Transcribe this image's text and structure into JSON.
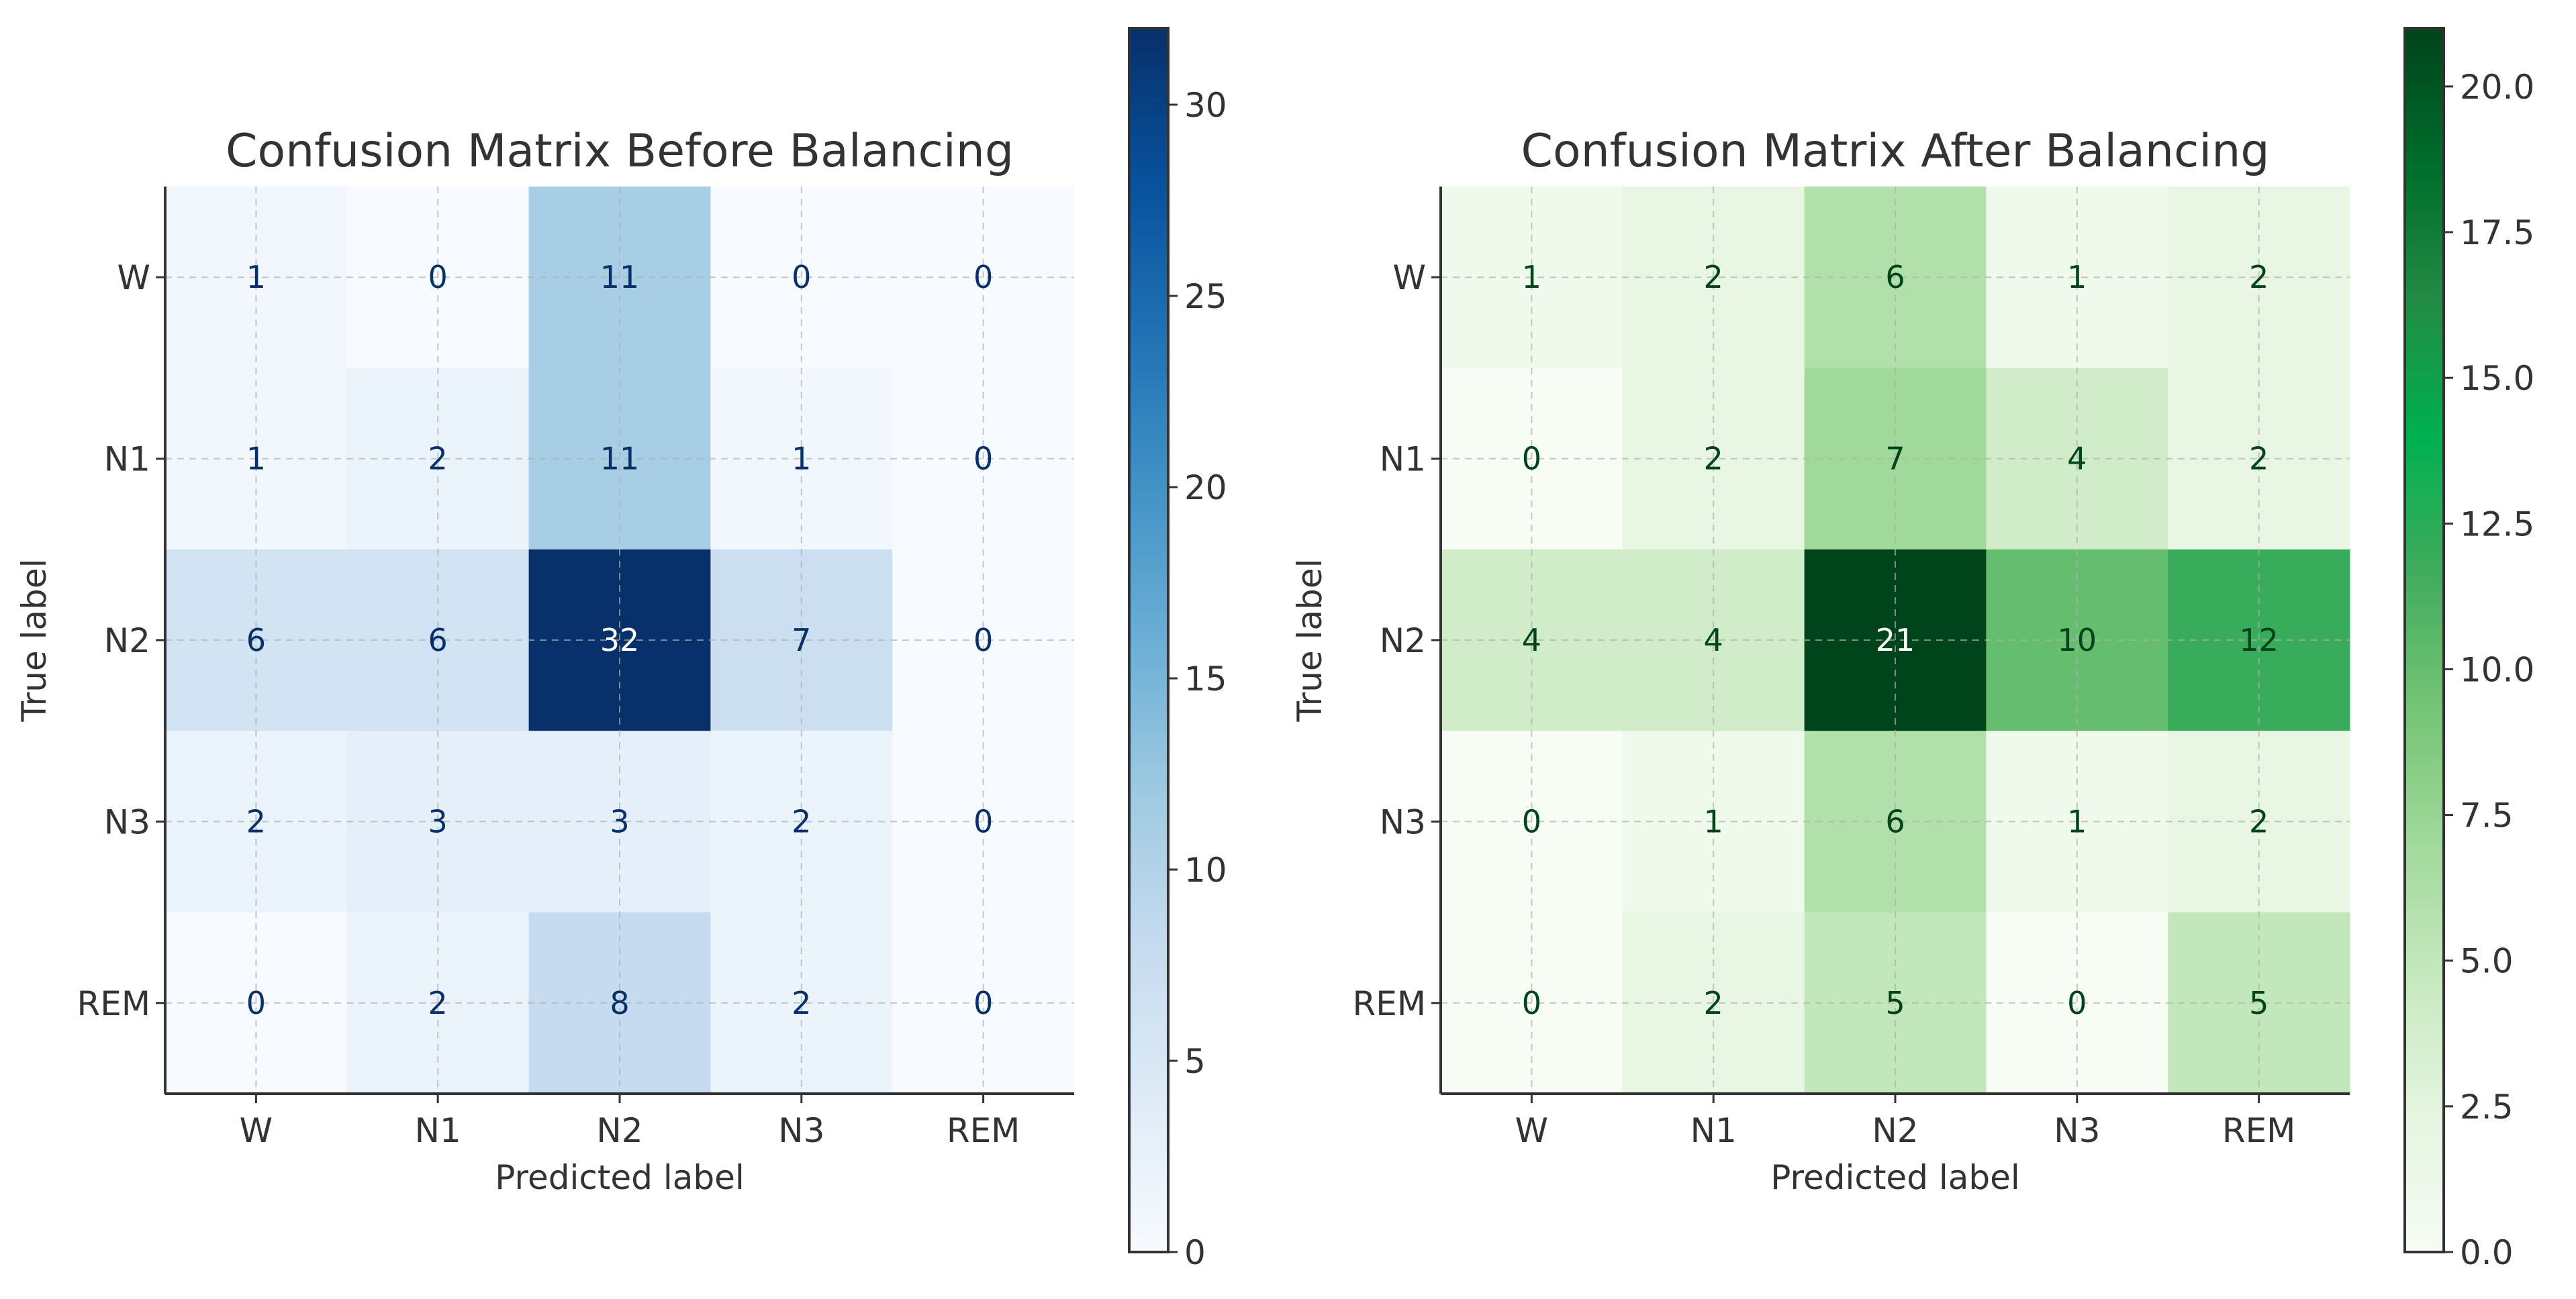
{
  "chart_data": [
    {
      "type": "heatmap",
      "title": "Confusion Matrix Before Balancing",
      "xlabel": "Predicted label",
      "ylabel": "True label",
      "x_categories": [
        "W",
        "N1",
        "N2",
        "N3",
        "REM"
      ],
      "y_categories": [
        "W",
        "N1",
        "N2",
        "N3",
        "REM"
      ],
      "values": [
        [
          1,
          0,
          11,
          0,
          0
        ],
        [
          1,
          2,
          11,
          1,
          0
        ],
        [
          6,
          6,
          32,
          7,
          0
        ],
        [
          2,
          3,
          3,
          2,
          0
        ],
        [
          0,
          2,
          8,
          2,
          0
        ]
      ],
      "colormap": "Blues",
      "colormap_stops": [
        "#f7fbff",
        "#deebf7",
        "#c6dbef",
        "#9ecae1",
        "#6baed6",
        "#4292c6",
        "#2171b5",
        "#08519c",
        "#08306b"
      ],
      "vmin": 0,
      "vmax": 32,
      "colorbar_ticks": [
        0,
        5,
        10,
        15,
        20,
        25,
        30
      ],
      "colorbar_tick_labels": [
        "0",
        "5",
        "10",
        "15",
        "20",
        "25",
        "30"
      ],
      "grid": true
    },
    {
      "type": "heatmap",
      "title": "Confusion Matrix After Balancing",
      "xlabel": "Predicted label",
      "ylabel": "True label",
      "x_categories": [
        "W",
        "N1",
        "N2",
        "N3",
        "REM"
      ],
      "y_categories": [
        "W",
        "N1",
        "N2",
        "N3",
        "REM"
      ],
      "values": [
        [
          1,
          2,
          6,
          1,
          2
        ],
        [
          0,
          2,
          7,
          4,
          2
        ],
        [
          4,
          4,
          21,
          10,
          12
        ],
        [
          0,
          1,
          6,
          1,
          2
        ],
        [
          0,
          2,
          5,
          0,
          5
        ]
      ],
      "colormap": "Greens",
      "colormap_stops": [
        "#f7fcf5",
        "#e5f5e0",
        "#c7e9c0",
        "#a1d99b",
        "#74c476",
        "#41ab5d",
        "#00b050",
        "#238b45",
        "#006d2c",
        "#00441b"
      ],
      "vmin": 0,
      "vmax": 21,
      "colorbar_ticks": [
        0,
        2.5,
        5,
        7.5,
        10,
        12.5,
        15,
        17.5,
        20
      ],
      "colorbar_tick_labels": [
        "0.0",
        "2.5",
        "5.0",
        "7.5",
        "10.0",
        "12.5",
        "15.0",
        "17.5",
        "20.0"
      ],
      "grid": true
    }
  ]
}
